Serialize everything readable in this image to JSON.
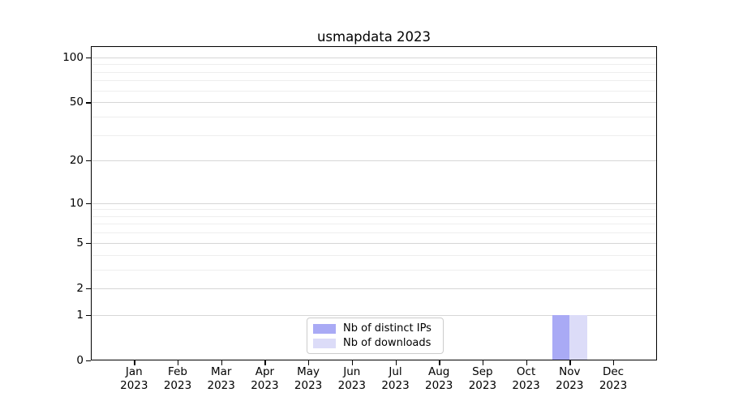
{
  "chart_data": {
    "type": "bar",
    "title": "usmapdata 2023",
    "months": [
      "Jan",
      "Feb",
      "Mar",
      "Apr",
      "May",
      "Jun",
      "Jul",
      "Aug",
      "Sep",
      "Oct",
      "Nov",
      "Dec"
    ],
    "year": "2023",
    "series": [
      {
        "name": "Nb of distinct IPs",
        "color": "#a9aaf5",
        "values": [
          0,
          0,
          0,
          0,
          0,
          0,
          0,
          0,
          0,
          0,
          1,
          0
        ]
      },
      {
        "name": "Nb of downloads",
        "color": "#dcdcf8",
        "values": [
          0,
          0,
          0,
          0,
          0,
          0,
          0,
          0,
          0,
          0,
          1,
          0
        ]
      }
    ],
    "y_axis": {
      "scale": "log1p",
      "major_ticks": [
        0,
        1,
        2,
        5,
        10,
        20,
        50,
        100
      ],
      "minor_ticks": [
        3,
        4,
        6,
        7,
        8,
        9,
        30,
        40,
        60,
        70,
        80,
        90
      ],
      "ylim": [
        0,
        117
      ]
    },
    "xlabel": "",
    "ylabel": "",
    "legend_position": "lower center",
    "grid": "on",
    "colors": {
      "grid_major": "#d6d6d6",
      "grid_minor": "#eeeeee",
      "axis": "#000000",
      "background": "#ffffff"
    }
  }
}
